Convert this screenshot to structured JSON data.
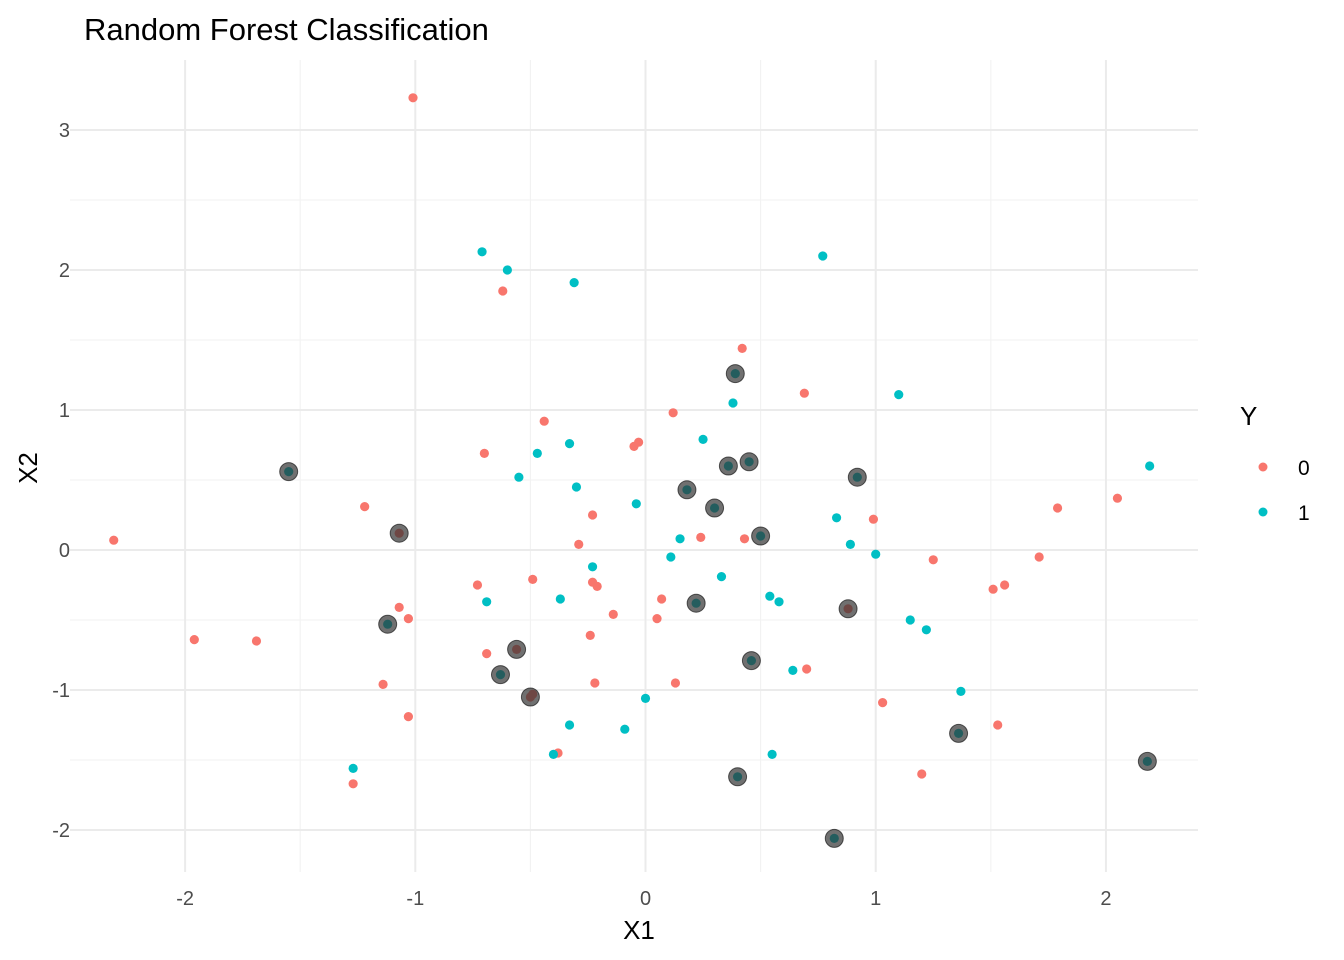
{
  "chart_data": {
    "type": "scatter",
    "title": "Random Forest Classification",
    "xlabel": "X1",
    "ylabel": "X2",
    "xlim": [
      -2.5,
      2.4
    ],
    "ylim": [
      -2.3,
      3.5
    ],
    "x_ticks": [
      -2,
      -1,
      0,
      1,
      2
    ],
    "y_ticks": [
      -2,
      -1,
      0,
      1,
      2,
      3
    ],
    "x_tick_labels": [
      "-2",
      "-1",
      "0",
      "1",
      "2"
    ],
    "y_tick_labels": [
      "-2",
      "-1",
      "0",
      "1",
      "2",
      "3"
    ],
    "grid": true,
    "legend": {
      "title": "Y",
      "position": "right",
      "entries": [
        {
          "label": "0",
          "color": "#F8766D"
        },
        {
          "label": "1",
          "color": "#00BFC4"
        }
      ]
    },
    "highlight_color": "#333333",
    "series": [
      {
        "name": "0",
        "color": "#F8766D",
        "points": [
          [
            -1.01,
            3.23
          ],
          [
            -0.62,
            1.85
          ],
          [
            0.42,
            1.44
          ],
          [
            -0.44,
            0.92
          ],
          [
            0.12,
            0.98
          ],
          [
            0.69,
            1.12
          ],
          [
            -0.7,
            0.69
          ],
          [
            -0.05,
            0.74
          ],
          [
            -0.03,
            0.77
          ],
          [
            -1.22,
            0.31
          ],
          [
            -2.31,
            0.07
          ],
          [
            -0.23,
            0.25
          ],
          [
            -0.29,
            0.04
          ],
          [
            0.24,
            0.09
          ],
          [
            0.43,
            0.08
          ],
          [
            0.99,
            0.22
          ],
          [
            1.79,
            0.3
          ],
          [
            2.05,
            0.37
          ],
          [
            1.25,
            -0.07
          ],
          [
            1.71,
            -0.05
          ],
          [
            1.51,
            -0.28
          ],
          [
            1.56,
            -0.25
          ],
          [
            -0.73,
            -0.25
          ],
          [
            -0.49,
            -0.21
          ],
          [
            -0.23,
            -0.23
          ],
          [
            -0.21,
            -0.26
          ],
          [
            0.07,
            -0.35
          ],
          [
            -0.14,
            -0.46
          ],
          [
            0.05,
            -0.49
          ],
          [
            -1.07,
            -0.41
          ],
          [
            -1.03,
            -0.49
          ],
          [
            -1.96,
            -0.64
          ],
          [
            -1.69,
            -0.65
          ],
          [
            -0.24,
            -0.61
          ],
          [
            -0.69,
            -0.74
          ],
          [
            0.7,
            -0.85
          ],
          [
            -1.14,
            -0.96
          ],
          [
            -0.22,
            -0.95
          ],
          [
            0.13,
            -0.95
          ],
          [
            -0.49,
            -1.03
          ],
          [
            1.03,
            -1.09
          ],
          [
            -1.03,
            -1.19
          ],
          [
            1.53,
            -1.25
          ],
          [
            -0.38,
            -1.45
          ],
          [
            1.2,
            -1.6
          ],
          [
            -1.27,
            -1.67
          ]
        ]
      },
      {
        "name": "1",
        "color": "#00BFC4",
        "points": [
          [
            -0.71,
            2.13
          ],
          [
            -0.6,
            2.0
          ],
          [
            -0.31,
            1.91
          ],
          [
            0.77,
            2.1
          ],
          [
            1.1,
            1.11
          ],
          [
            0.38,
            1.05
          ],
          [
            -0.33,
            0.76
          ],
          [
            0.25,
            0.79
          ],
          [
            -0.47,
            0.69
          ],
          [
            -0.55,
            0.52
          ],
          [
            -0.3,
            0.45
          ],
          [
            -0.04,
            0.33
          ],
          [
            0.83,
            0.23
          ],
          [
            2.19,
            0.6
          ],
          [
            0.15,
            0.08
          ],
          [
            0.89,
            0.04
          ],
          [
            1.0,
            -0.03
          ],
          [
            0.11,
            -0.05
          ],
          [
            -0.23,
            -0.12
          ],
          [
            0.33,
            -0.19
          ],
          [
            -0.69,
            -0.37
          ],
          [
            -0.37,
            -0.35
          ],
          [
            0.54,
            -0.33
          ],
          [
            0.58,
            -0.37
          ],
          [
            1.15,
            -0.5
          ],
          [
            1.22,
            -0.57
          ],
          [
            0.64,
            -0.86
          ],
          [
            1.37,
            -1.01
          ],
          [
            0.0,
            -1.06
          ],
          [
            -0.33,
            -1.25
          ],
          [
            -0.09,
            -1.28
          ],
          [
            -1.27,
            -1.56
          ],
          [
            -0.4,
            -1.46
          ],
          [
            0.55,
            -1.46
          ]
        ]
      }
    ],
    "highlighted_points": [
      {
        "x": 0.39,
        "y": 1.26,
        "class": "1"
      },
      {
        "x": -1.55,
        "y": 0.56,
        "class": "1"
      },
      {
        "x": 0.36,
        "y": 0.6,
        "class": "1"
      },
      {
        "x": 0.45,
        "y": 0.63,
        "class": "1"
      },
      {
        "x": 0.92,
        "y": 0.52,
        "class": "1"
      },
      {
        "x": 0.18,
        "y": 0.43,
        "class": "1"
      },
      {
        "x": 0.3,
        "y": 0.3,
        "class": "1"
      },
      {
        "x": -1.07,
        "y": 0.12,
        "class": "0"
      },
      {
        "x": 0.5,
        "y": 0.1,
        "class": "1"
      },
      {
        "x": -1.12,
        "y": -0.53,
        "class": "1"
      },
      {
        "x": 0.22,
        "y": -0.38,
        "class": "1"
      },
      {
        "x": 0.88,
        "y": -0.42,
        "class": "0"
      },
      {
        "x": -0.56,
        "y": -0.71,
        "class": "0"
      },
      {
        "x": 0.46,
        "y": -0.79,
        "class": "1"
      },
      {
        "x": -0.63,
        "y": -0.89,
        "class": "1"
      },
      {
        "x": -0.5,
        "y": -1.05,
        "class": "0"
      },
      {
        "x": 1.36,
        "y": -1.31,
        "class": "1"
      },
      {
        "x": 2.18,
        "y": -1.51,
        "class": "1"
      },
      {
        "x": 0.4,
        "y": -1.62,
        "class": "1"
      },
      {
        "x": 0.82,
        "y": -2.06,
        "class": "1"
      }
    ]
  }
}
